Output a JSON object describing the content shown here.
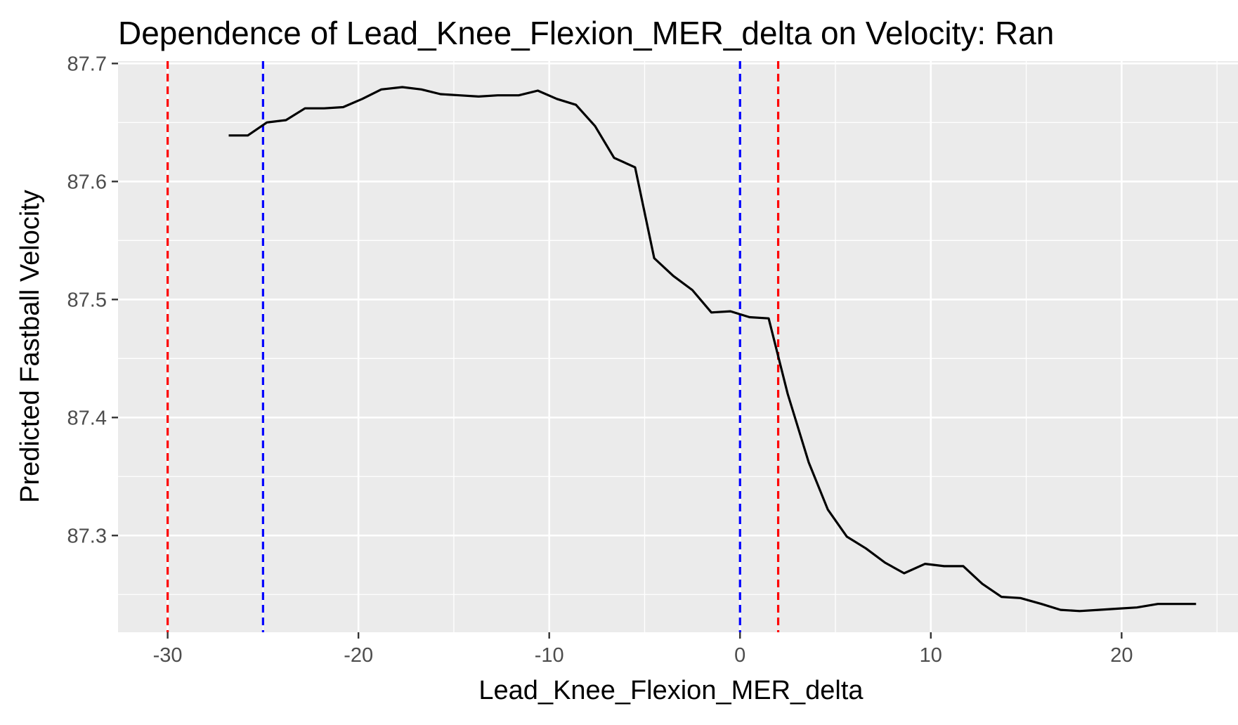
{
  "chart_data": {
    "type": "line",
    "title": "Dependence of Lead_Knee_Flexion_MER_delta on Velocity: Ran",
    "xlabel": "Lead_Knee_Flexion_MER_delta",
    "ylabel": "Predicted Fastball Velocity",
    "xlim": [
      -32.6,
      26.1
    ],
    "ylim": [
      87.218,
      87.702
    ],
    "x_ticks": [
      -30,
      -20,
      -10,
      0,
      10,
      20
    ],
    "x_tick_labels": [
      "-30",
      "-20",
      "-10",
      "0",
      "10",
      "20"
    ],
    "y_ticks": [
      87.3,
      87.4,
      87.5,
      87.6,
      87.7
    ],
    "y_tick_labels": [
      "87.3",
      "87.4",
      "87.5",
      "87.6",
      "87.7"
    ],
    "grid": true,
    "background": "#ebebeb",
    "series": [
      {
        "color": "#000000",
        "x": [
          -26.8,
          -25.8,
          -24.8,
          -23.8,
          -22.8,
          -21.8,
          -20.8,
          -19.8,
          -18.8,
          -17.7,
          -16.7,
          -15.7,
          -14.7,
          -13.7,
          -12.7,
          -11.6,
          -10.6,
          -9.6,
          -8.6,
          -7.6,
          -6.6,
          -5.5,
          -4.5,
          -3.5,
          -2.5,
          -1.5,
          -0.5,
          0.5,
          1.5,
          2.5,
          3.6,
          4.6,
          5.6,
          6.6,
          7.6,
          8.6,
          9.7,
          10.7,
          11.7,
          12.7,
          13.7,
          14.7,
          15.8,
          16.8,
          17.8,
          18.8,
          19.8,
          20.8,
          21.9,
          22.9,
          23.9
        ],
        "y": [
          87.639,
          87.639,
          87.65,
          87.652,
          87.662,
          87.662,
          87.663,
          87.67,
          87.678,
          87.68,
          87.678,
          87.674,
          87.673,
          87.672,
          87.673,
          87.673,
          87.677,
          87.67,
          87.665,
          87.647,
          87.62,
          87.612,
          87.535,
          87.52,
          87.508,
          87.489,
          87.49,
          87.485,
          87.484,
          87.42,
          87.362,
          87.322,
          87.299,
          87.289,
          87.277,
          87.268,
          87.276,
          87.274,
          87.274,
          87.259,
          87.248,
          87.247,
          87.242,
          87.237,
          87.236,
          87.237,
          87.238,
          87.239,
          87.242,
          87.242,
          87.242
        ]
      }
    ],
    "vlines": [
      {
        "x": -30,
        "color": "#ff0000",
        "style": "dashed"
      },
      {
        "x": -25,
        "color": "#0000ff",
        "style": "dashed"
      },
      {
        "x": 0,
        "color": "#0000ff",
        "style": "dashed"
      },
      {
        "x": 2,
        "color": "#ff0000",
        "style": "dashed"
      }
    ]
  }
}
